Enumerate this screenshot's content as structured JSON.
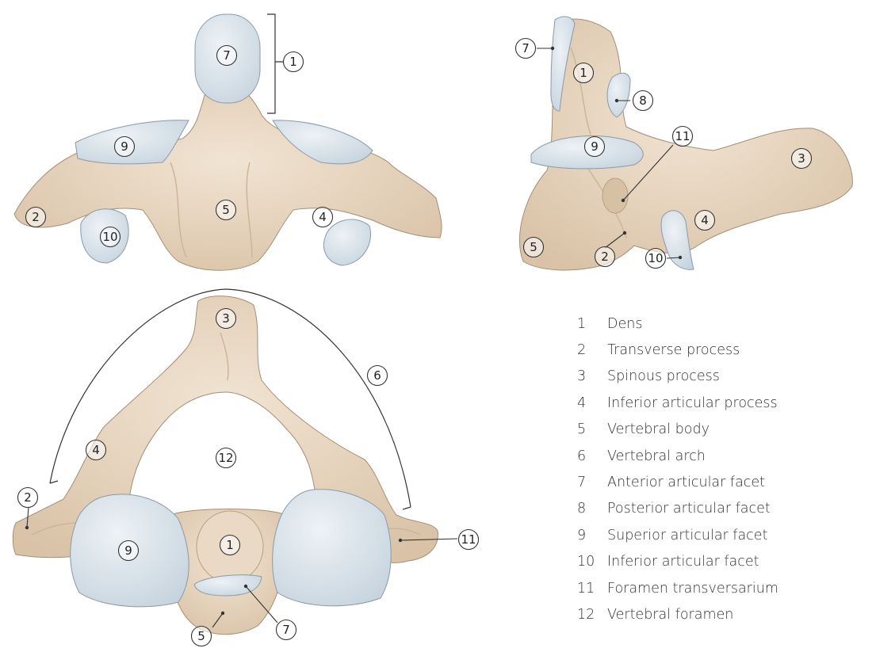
{
  "colors": {
    "bone": "#e7d5c0",
    "bone_shadow": "#cdb59a",
    "bone_edge": "#a58f77",
    "facet": "#d6e1ea",
    "facet_edge": "#8a9aa8",
    "line": "#333333"
  },
  "legend": [
    {
      "number": "1",
      "label": "Dens"
    },
    {
      "number": "2",
      "label": "Transverse process"
    },
    {
      "number": "3",
      "label": "Spinous process"
    },
    {
      "number": "4",
      "label": "Inferior articular process"
    },
    {
      "number": "5",
      "label": "Vertebral body"
    },
    {
      "number": "6",
      "label": "Vertebral arch"
    },
    {
      "number": "7",
      "label": "Anterior articular facet"
    },
    {
      "number": "8",
      "label": "Posterior articular facet"
    },
    {
      "number": "9",
      "label": "Superior articular facet"
    },
    {
      "number": "10",
      "label": "Inferior articular facet"
    },
    {
      "number": "11",
      "label": "Foramen transversarium"
    },
    {
      "number": "12",
      "label": "Vertebral foramen"
    }
  ],
  "markers": {
    "anterior_view": [
      "7",
      "1",
      "9",
      "2",
      "10",
      "5",
      "4"
    ],
    "lateral_view": [
      "7",
      "1",
      "8",
      "9",
      "11",
      "3",
      "4",
      "5",
      "2",
      "10"
    ],
    "superior_view": [
      "3",
      "6",
      "4",
      "12",
      "2",
      "9",
      "1",
      "11",
      "5",
      "7"
    ]
  }
}
